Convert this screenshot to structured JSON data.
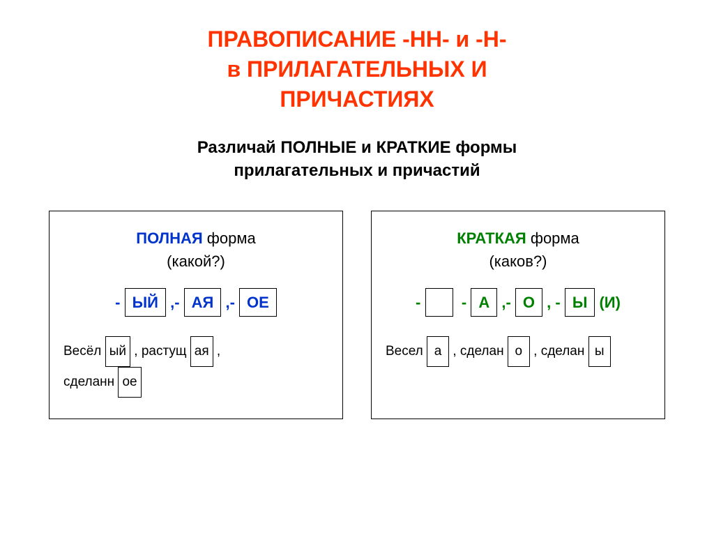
{
  "colors": {
    "title": "#ff3300",
    "blue": "#0033cc",
    "green": "#008000",
    "black": "#000000",
    "bg": "#ffffff"
  },
  "fontsizes": {
    "title": 32,
    "subtitle": 24,
    "card_head": 22,
    "endings": 22,
    "examples": 19
  },
  "title": {
    "line1": "ПРАВОПИСАНИЕ  -НН-  и  -Н-",
    "line2": "в  ПРИЛАГАТЕЛЬНЫХ  И",
    "line3": "ПРИЧАСТИЯХ"
  },
  "subtitle": {
    "line1": "Различай ПОЛНЫЕ и КРАТКИЕ формы",
    "line2": "прилагательных и причастий"
  },
  "full": {
    "label": "ПОЛНАЯ",
    "word_form": " форма",
    "question": "(какой?)",
    "endings": [
      "ЫЙ",
      "АЯ",
      "ОЕ"
    ],
    "examples": [
      {
        "stem": "Весёл",
        "end": "ый"
      },
      {
        "stem": "растущ",
        "end": "ая"
      },
      {
        "stem": "сделанн",
        "end": "ое"
      }
    ]
  },
  "short": {
    "label": "КРАТКАЯ",
    "word_form": " форма",
    "question": "(каков?)",
    "endings_empty": true,
    "endings": [
      "А",
      "О",
      "Ы"
    ],
    "endings_tail": "(И)",
    "examples": [
      {
        "stem": "Весел",
        "end": "а"
      },
      {
        "stem": "сделан",
        "end": "о"
      },
      {
        "stem": "сделан",
        "end": "ы"
      }
    ]
  }
}
